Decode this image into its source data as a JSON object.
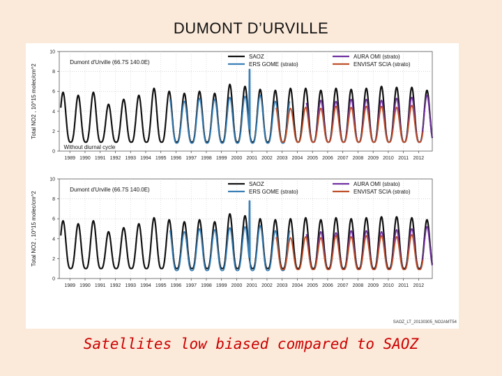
{
  "slide": {
    "title": "DUMONT D’URVILLE",
    "caption": "Satellites low biased compared to SAOZ",
    "figure_id": "SAOZ_LT_20130305_NO2AMT54"
  },
  "chart_data": [
    {
      "type": "line",
      "panel": "top",
      "site_label": "Dumont d'Urville (66.7S 140.0E)",
      "ylabel": "Total NO2 , 10^15 molec/cm^2",
      "annotation": "Without diurnal cycle",
      "ylim": [
        0,
        10
      ],
      "yticks": [
        0,
        2,
        4,
        6,
        8,
        10
      ],
      "xlim": [
        1988.3,
        2012.9
      ],
      "xticks": [
        1989,
        1990,
        1991,
        1992,
        1993,
        1994,
        1995,
        1996,
        1997,
        1998,
        1999,
        2000,
        2001,
        2002,
        2003,
        2004,
        2005,
        2006,
        2007,
        2008,
        2009,
        2010,
        2011,
        2012
      ],
      "legend_placement": "top",
      "series": [
        {
          "name": "SAOZ",
          "color": "#111111",
          "x_start": 1988.4,
          "x_end": 2012.9,
          "annual_min": 0.9,
          "annual_peak": [
            5.9,
            5.6,
            5.9,
            4.7,
            5.2,
            5.6,
            6.3,
            6.0,
            5.8,
            6.0,
            5.8,
            6.7,
            6.5,
            6.2,
            6.1,
            6.3,
            6.3,
            6.1,
            6.3,
            6.2,
            6.3,
            6.5,
            6.4,
            6.4,
            6.1
          ]
        },
        {
          "name": "ERS GOME (strato)",
          "color": "#3a7fb5",
          "x_start": 1995.6,
          "x_end": 2003.5,
          "annual_min": 0.8,
          "annual_peak": [
            5.4,
            5.0,
            5.3,
            5.2,
            5.4,
            5.5,
            5.6,
            5.0,
            5.2
          ],
          "spike": {
            "x": 2000.85,
            "y": 8.2
          }
        },
        {
          "name": "AURA OMI (strato)",
          "color": "#7030a0",
          "x_start": 2004.6,
          "x_end": 2012.9,
          "annual_min": 0.9,
          "annual_peak": [
            5.0,
            5.1,
            5.0,
            5.2,
            5.2,
            5.1,
            5.3,
            5.4,
            5.6
          ]
        },
        {
          "name": "ENVISAT SCIA (strato)",
          "color": "#c0502a",
          "x_start": 2002.6,
          "x_end": 2012.3,
          "annual_min": 0.9,
          "annual_peak": [
            4.5,
            4.3,
            4.4,
            4.3,
            4.5,
            4.4,
            4.5,
            4.5,
            4.4,
            4.6
          ]
        }
      ]
    },
    {
      "type": "line",
      "panel": "bottom",
      "site_label": "Dumont d'Urville (66.7S 140.0E)",
      "ylabel": "Total NO2 , 10^15 molec/cm^2",
      "ylim": [
        0,
        10
      ],
      "yticks": [
        0,
        2,
        4,
        6,
        8,
        10
      ],
      "xlim": [
        1988.3,
        2012.9
      ],
      "xticks": [
        1989,
        1990,
        1991,
        1992,
        1993,
        1994,
        1995,
        1996,
        1997,
        1998,
        1999,
        2000,
        2001,
        2002,
        2003,
        2004,
        2005,
        2006,
        2007,
        2008,
        2009,
        2010,
        2011,
        2012
      ],
      "legend_placement": "top",
      "series": [
        {
          "name": "SAOZ",
          "color": "#111111",
          "x_start": 1988.4,
          "x_end": 2012.9,
          "annual_min": 1.0,
          "annual_peak": [
            5.8,
            5.5,
            5.8,
            4.7,
            5.1,
            5.5,
            6.1,
            5.9,
            5.7,
            5.9,
            5.7,
            6.5,
            6.3,
            6.0,
            5.9,
            6.0,
            6.1,
            5.9,
            6.1,
            6.0,
            6.1,
            6.2,
            6.2,
            6.1,
            5.9
          ]
        },
        {
          "name": "ERS GOME (strato)",
          "color": "#3a7fb5",
          "x_start": 1995.6,
          "x_end": 2003.5,
          "annual_min": 0.8,
          "annual_peak": [
            5.0,
            4.7,
            5.0,
            4.9,
            5.1,
            5.2,
            5.3,
            4.8,
            5.0
          ],
          "spike": {
            "x": 2000.85,
            "y": 7.8
          }
        },
        {
          "name": "AURA OMI (strato)",
          "color": "#7030a0",
          "x_start": 2004.6,
          "x_end": 2012.9,
          "annual_min": 0.9,
          "annual_peak": [
            4.6,
            4.7,
            4.6,
            4.8,
            4.8,
            4.7,
            4.9,
            5.0,
            5.2
          ]
        },
        {
          "name": "ENVISAT SCIA (strato)",
          "color": "#c0502a",
          "x_start": 2002.6,
          "x_end": 2012.3,
          "annual_min": 0.9,
          "annual_peak": [
            4.3,
            4.1,
            4.2,
            4.1,
            4.3,
            4.2,
            4.3,
            4.3,
            4.2,
            4.4
          ]
        }
      ]
    }
  ]
}
